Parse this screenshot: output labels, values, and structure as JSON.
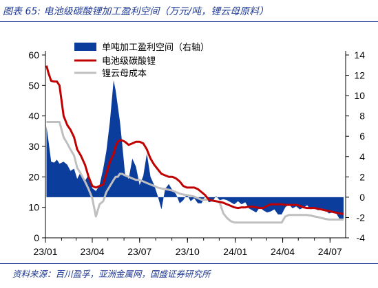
{
  "figure": {
    "title": "图表 65:  电池级碳酸锂加工盈利空间（万元/吨，锂云母原料）",
    "source": "资料来源：百川盈孚，亚洲金属网，国盛证券研究所"
  },
  "colors": {
    "profit": "#0a3d9c",
    "lithium": "#c00000",
    "lepidolite": "#bfbfbf",
    "heading": "#1f3a93"
  },
  "chart_data": {
    "type": "area",
    "x": [
      "2023-01-03",
      "2023-01-07",
      "2023-01-12",
      "2023-01-18",
      "2023-01-23",
      "2023-01-28",
      "2023-02-05",
      "2023-02-12",
      "2023-02-18",
      "2023-02-25",
      "2023-03-03",
      "2023-03-10",
      "2023-03-18",
      "2023-03-25",
      "2023-04-01",
      "2023-04-08",
      "2023-04-15",
      "2023-04-22",
      "2023-04-28",
      "2023-05-05",
      "2023-05-12",
      "2023-05-16",
      "2023-05-20",
      "2023-05-24",
      "2023-05-28",
      "2023-06-03",
      "2023-06-10",
      "2023-06-17",
      "2023-06-24",
      "2023-07-01",
      "2023-07-08",
      "2023-07-15",
      "2023-07-22",
      "2023-07-29",
      "2023-08-05",
      "2023-08-12",
      "2023-08-19",
      "2023-08-26",
      "2023-09-02",
      "2023-09-09",
      "2023-09-16",
      "2023-09-23",
      "2023-09-30",
      "2023-10-07",
      "2023-10-14",
      "2023-10-21",
      "2023-10-28",
      "2023-11-04",
      "2023-11-11",
      "2023-11-18",
      "2023-11-25",
      "2023-12-02",
      "2023-12-09",
      "2023-12-16",
      "2023-12-23",
      "2023-12-30",
      "2024-01-06",
      "2024-01-13",
      "2024-01-20",
      "2024-01-27",
      "2024-02-03",
      "2024-02-10",
      "2024-02-17",
      "2024-02-24",
      "2024-03-02",
      "2024-03-09",
      "2024-03-16",
      "2024-03-23",
      "2024-03-30",
      "2024-04-06",
      "2024-04-13",
      "2024-04-20",
      "2024-04-27",
      "2024-05-04",
      "2024-05-11",
      "2024-05-18",
      "2024-05-25",
      "2024-06-01",
      "2024-06-08",
      "2024-06-15",
      "2024-06-22",
      "2024-06-29",
      "2024-07-06",
      "2024-07-13",
      "2024-07-20",
      "2024-07-27"
    ],
    "series": [
      {
        "name": "单吨加工盈利空间（右轴）",
        "axis": "right",
        "style": "area",
        "color": "#0a3d9c",
        "values": [
          7,
          5.5,
          3.5,
          3.4,
          3.7,
          3.3,
          3.5,
          3.2,
          2.6,
          2.8,
          1.8,
          2.5,
          1.6,
          2.2,
          0.9,
          0.6,
          1.2,
          2.8,
          4.5,
          7.5,
          11.5,
          10.5,
          9,
          7.5,
          5.5,
          2.3,
          1.8,
          3.8,
          3.0,
          1.2,
          2.1,
          4.3,
          2.0,
          1.2,
          0.1,
          -1.2,
          0.8,
          1.3,
          0.7,
          0.3,
          -0.6,
          -0.3,
          0.3,
          -0.4,
          -0.1,
          -0.6,
          -0.6,
          0.1,
          -0.5,
          -0.4,
          0.1,
          -0.3,
          -0.2,
          -0.3,
          -0.5,
          -0.7,
          -0.4,
          -0.7,
          -0.5,
          -1.1,
          -1.3,
          -1.5,
          -1.0,
          -1.3,
          -1.5,
          -1.4,
          -1.2,
          -1.7,
          -1.7,
          -1.0,
          -0.7,
          -1.1,
          -0.9,
          -1.2,
          -1.0,
          -0.8,
          -1.2,
          -1.0,
          -1.3,
          -1.1,
          -1.3,
          -1.6,
          -1.5,
          -1.6,
          -2.2,
          -2.1
        ]
      },
      {
        "name": "电池级碳酸锂",
        "axis": "left",
        "style": "line",
        "color": "#c00000",
        "values": [
          56.5,
          54,
          51.5,
          51.3,
          51.3,
          50,
          40,
          37,
          35.5,
          33,
          29,
          27,
          24,
          20,
          17,
          16.5,
          17,
          17.5,
          21,
          25,
          27.5,
          30,
          31.5,
          32,
          32,
          31.5,
          30.5,
          31,
          31.5,
          31.5,
          31,
          29,
          26,
          24,
          22.5,
          21,
          20.5,
          20,
          20,
          19.5,
          18.5,
          17,
          16.5,
          16.5,
          16.5,
          16,
          15,
          14,
          12.5,
          12.2,
          12,
          11.8,
          11.5,
          11,
          10.5,
          10,
          9.8,
          10,
          10,
          10.2,
          10.2,
          10,
          9.8,
          9.8,
          10.5,
          11,
          11,
          11,
          11,
          10.8,
          10.8,
          10.8,
          10.8,
          10.5,
          10,
          9.8,
          9.8,
          9.8,
          9.5,
          9.3,
          9.0,
          8.8,
          8.5,
          8.2,
          8,
          7.8
        ]
      },
      {
        "name": "锂云母成本",
        "axis": "left",
        "style": "line",
        "color": "#bfbfbf",
        "values": [
          38,
          38,
          38,
          38,
          38,
          38,
          33,
          31,
          29,
          27,
          23,
          21,
          18.5,
          16,
          13,
          7,
          11,
          12,
          15,
          17,
          19,
          20,
          20,
          21,
          21,
          20.5,
          20,
          19.5,
          19,
          19,
          18.5,
          18,
          17.5,
          17,
          16.5,
          16.2,
          16,
          15.8,
          15.5,
          15,
          14.5,
          14.2,
          14,
          13.8,
          13.5,
          13,
          12.5,
          12.5,
          12.5,
          12.2,
          12,
          11.5,
          8,
          6.5,
          5.5,
          5,
          5,
          5,
          5,
          5,
          5,
          5,
          5,
          5,
          5,
          5,
          5,
          5,
          5,
          7,
          7.5,
          7.5,
          7.5,
          7.5,
          7.5,
          7.5,
          7.3,
          7,
          6.8,
          6.5,
          6.2,
          6,
          6,
          6,
          6,
          6
        ]
      }
    ],
    "x_tick_labels": [
      "23/01",
      "23/04",
      "23/07",
      "23/10",
      "24/01",
      "24/04",
      "24/07"
    ],
    "y_left": {
      "range": [
        0,
        60
      ],
      "ticks": [
        "0",
        "10",
        "20",
        "30",
        "40",
        "50",
        "60"
      ]
    },
    "y_right": {
      "range": [
        -4,
        14
      ],
      "ticks": [
        "-4",
        "-2",
        "0",
        "2",
        "4",
        "6",
        "8",
        "10",
        "12",
        "14"
      ]
    },
    "legend": {
      "placement": "top-center"
    },
    "grid": false
  }
}
